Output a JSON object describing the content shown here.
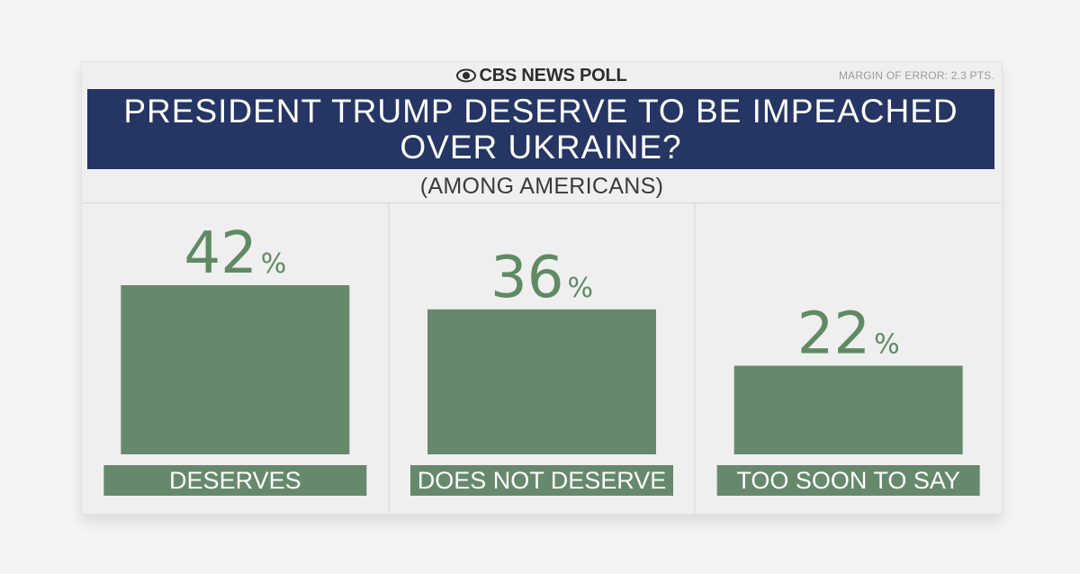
{
  "brand": {
    "name": "CBS NEWS POLL",
    "margin_of_error": "MARGIN OF ERROR: 2.3 PTS."
  },
  "chart_data": {
    "type": "bar",
    "title": "PRESIDENT TRUMP DESERVE TO BE IMPEACHED OVER UKRAINE?",
    "subtitle": "(AMONG AMERICANS)",
    "categories": [
      "DESERVES",
      "DOES NOT DESERVE",
      "TOO SOON TO SAY"
    ],
    "values": [
      42,
      36,
      22
    ],
    "value_labels": [
      "42",
      "36",
      "22"
    ],
    "unit": "%",
    "ylim": [
      0,
      100
    ],
    "xlabel": "",
    "ylabel": "",
    "grid": false,
    "legend": "none"
  },
  "colors": {
    "bar": "#66896b",
    "value_text": "#5f8a63",
    "title_bg": "#253564",
    "label_text": "#ffffff",
    "divider": "#d6d6d6"
  },
  "icons": {
    "brand_logo": "cbs-eye-icon"
  }
}
